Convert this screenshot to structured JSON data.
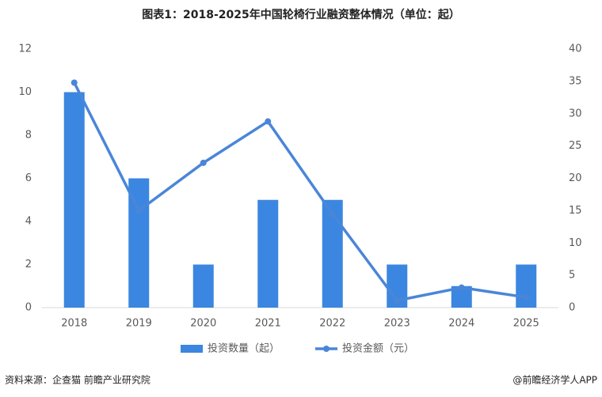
{
  "chart_data": {
    "type": "bar-line",
    "title": "图表1：2018-2025年中国轮椅行业融资整体情况（单位：起）",
    "categories": [
      "2018",
      "2019",
      "2020",
      "2021",
      "2022",
      "2023",
      "2024",
      "2025"
    ],
    "series": [
      {
        "name": "投资数量（起）",
        "type": "bar",
        "color": "#3b86e0",
        "values": [
          10,
          6,
          2,
          5,
          5,
          2,
          1,
          2
        ]
      },
      {
        "name": "投资金额（元）",
        "type": "line",
        "axis": "y2",
        "color": "#4a86d8",
        "values": [
          34.8,
          15,
          22.4,
          28.8,
          14.5,
          1.1,
          3.1,
          1.6
        ]
      }
    ],
    "ylim": [
      0,
      12
    ],
    "yticks": [
      0,
      2,
      4,
      6,
      8,
      10,
      12
    ],
    "y2lim": [
      0,
      40
    ],
    "y2ticks": [
      0,
      5,
      10,
      15,
      20,
      25,
      30,
      35,
      40
    ],
    "legend": "bottom",
    "source": "资料来源：企查猫 前瞻产业研究院",
    "credit": "@前瞻经济学人APP"
  }
}
